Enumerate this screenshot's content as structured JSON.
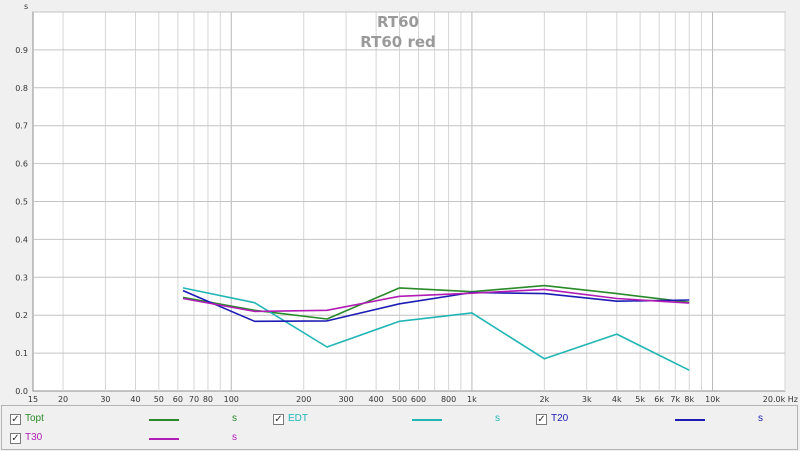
{
  "chart_data": {
    "type": "line",
    "title": "RT60",
    "subtitle": "RT60 red",
    "ylabel": "s",
    "xunit": "Hz",
    "xscale": "log",
    "xlim": [
      15,
      20000
    ],
    "ylim": [
      0,
      1.0
    ],
    "grid": true,
    "x_tick_values": [
      15,
      20,
      30,
      40,
      50,
      60,
      70,
      80,
      100,
      200,
      300,
      400,
      500,
      600,
      800,
      1000,
      2000,
      3000,
      4000,
      5000,
      6000,
      7000,
      8000,
      10000,
      20000
    ],
    "x_tick_labels": [
      "15",
      "20",
      "30",
      "40",
      "50",
      "60",
      "70",
      "80",
      "100",
      "200",
      "300",
      "400",
      "500",
      "600",
      "800",
      "1k",
      "2k",
      "3k",
      "4k",
      "5k",
      "6k",
      "7k",
      "8k",
      "10k",
      "20.0k Hz"
    ],
    "y_tick_values": [
      0,
      0.1,
      0.2,
      0.3,
      0.4,
      0.5,
      0.6,
      0.7,
      0.8,
      0.9
    ],
    "y_tick_labels": [
      "0.0",
      "0.1",
      "0.2",
      "0.3",
      "0.4",
      "0.5",
      "0.6",
      "0.7",
      "0.8",
      "0.9"
    ],
    "x": [
      63,
      125,
      250,
      500,
      1000,
      2000,
      4000,
      8000
    ],
    "series": [
      {
        "name": "Topt",
        "color": "#2a8a2a",
        "values": [
          0.247,
          0.213,
          0.19,
          0.272,
          0.262,
          0.278,
          0.257,
          0.234
        ]
      },
      {
        "name": "EDT",
        "color": "#22b5b5",
        "values": [
          0.272,
          0.233,
          0.116,
          0.184,
          0.206,
          0.085,
          0.15,
          0.055
        ]
      },
      {
        "name": "T20",
        "color": "#1c1cb4",
        "values": [
          0.265,
          0.184,
          0.185,
          0.23,
          0.26,
          0.257,
          0.237,
          0.24
        ]
      },
      {
        "name": "T30",
        "color": "#b01cb4",
        "values": [
          0.244,
          0.21,
          0.213,
          0.25,
          0.258,
          0.268,
          0.244,
          0.232
        ]
      }
    ]
  },
  "legend": {
    "items": [
      {
        "name": "Topt",
        "unit": "s",
        "checked": "✓"
      },
      {
        "name": "EDT",
        "unit": "s",
        "checked": "✓"
      },
      {
        "name": "T20",
        "unit": "s",
        "checked": "✓"
      },
      {
        "name": "T30",
        "unit": "s",
        "checked": "✓"
      }
    ]
  }
}
